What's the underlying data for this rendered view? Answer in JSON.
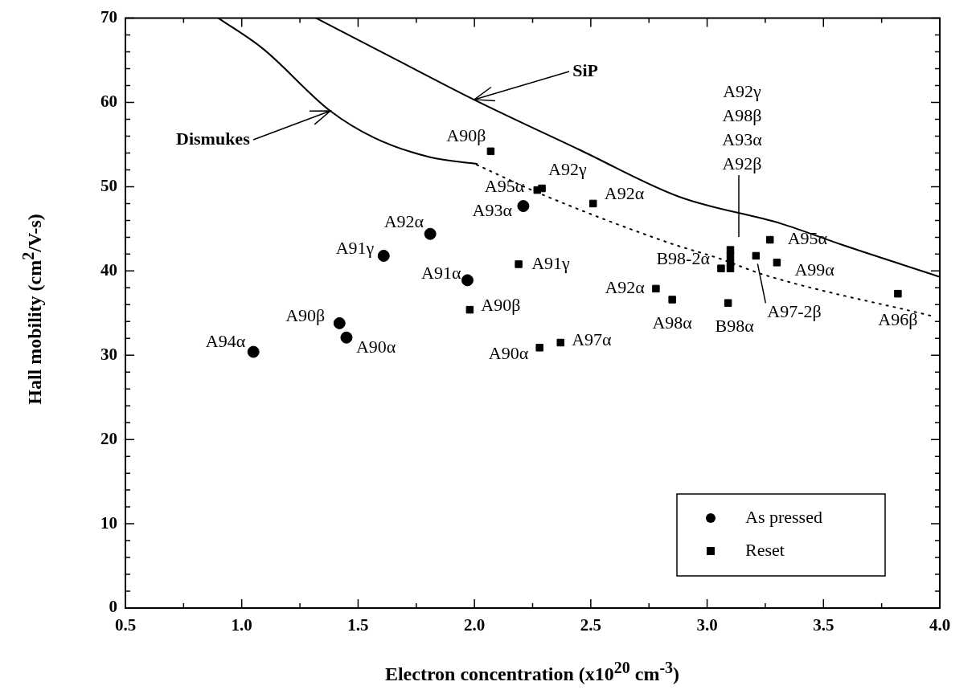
{
  "chart_data": {
    "type": "scatter",
    "xlabel": "Electron concentration (x10$^{20}$ cm$^{-3}$)",
    "ylabel": "Hall mobility (cm$^{2}$/V-s)",
    "xlim": [
      0.5,
      4.0
    ],
    "ylim": [
      0,
      70
    ],
    "xticks": [
      {
        "value": 0.5,
        "label": "0.5"
      },
      {
        "value": 0.75,
        "label": null
      },
      {
        "value": 1,
        "label": "1.0"
      },
      {
        "value": 1.25,
        "label": null
      },
      {
        "value": 1.5,
        "label": "1.5"
      },
      {
        "value": 1.75,
        "label": null
      },
      {
        "value": 2,
        "label": "2.0"
      },
      {
        "value": 2.25,
        "label": null
      },
      {
        "value": 2.5,
        "label": "2.5"
      },
      {
        "value": 2.75,
        "label": null
      },
      {
        "value": 3,
        "label": "3.0"
      },
      {
        "value": 3.25,
        "label": null
      },
      {
        "value": 3.5,
        "label": "3.5"
      },
      {
        "value": 3.75,
        "label": null
      },
      {
        "value": 4,
        "label": "4.0"
      }
    ],
    "yticks": [
      0,
      {
        "value": 2,
        "label": null
      },
      {
        "value": 4,
        "label": null
      },
      {
        "value": 6,
        "label": null
      },
      {
        "value": 8,
        "label": null
      },
      10,
      {
        "value": 12,
        "label": null
      },
      {
        "value": 14,
        "label": null
      },
      {
        "value": 16,
        "label": null
      },
      {
        "value": 18,
        "label": null
      },
      20,
      {
        "value": 22,
        "label": null
      },
      {
        "value": 24,
        "label": null
      },
      {
        "value": 26,
        "label": null
      },
      {
        "value": 28,
        "label": null
      },
      30,
      {
        "value": 32,
        "label": null
      },
      {
        "value": 34,
        "label": null
      },
      {
        "value": 36,
        "label": null
      },
      {
        "value": 38,
        "label": null
      },
      40,
      {
        "value": 42,
        "label": null
      },
      {
        "value": 44,
        "label": null
      },
      {
        "value": 46,
        "label": null
      },
      {
        "value": 48,
        "label": null
      },
      50,
      {
        "value": 52,
        "label": null
      },
      {
        "value": 54,
        "label": null
      },
      {
        "value": 56,
        "label": null
      },
      {
        "value": 58,
        "label": null
      },
      60,
      {
        "value": 62,
        "label": null
      },
      {
        "value": 64,
        "label": null
      },
      {
        "value": 66,
        "label": null
      },
      {
        "value": 68,
        "label": null
      },
      70
    ],
    "grid": false,
    "legend": "bottom right",
    "series": [
      {
        "name": "As pressed",
        "marker": "circle",
        "color": "#000000",
        "x": [
          1.05,
          1.42,
          1.45,
          1.61,
          1.81,
          1.97,
          2.21
        ],
        "values": [
          30.4,
          33.8,
          32.1,
          41.8,
          44.4,
          38.9,
          47.7
        ]
      },
      {
        "name": "Reset",
        "marker": "square",
        "color": "#000000",
        "x": [
          2.07,
          2.27,
          2.29,
          2.51,
          2.19,
          1.98,
          2.28,
          2.37,
          2.78,
          2.85,
          3.09,
          3.06,
          3.1,
          3.1,
          3.1,
          3.1,
          3.21,
          3.27,
          3.3,
          3.82
        ],
        "values": [
          54.2,
          49.6,
          49.8,
          48.0,
          40.8,
          35.4,
          30.9,
          31.5,
          37.9,
          36.6,
          36.2,
          40.3,
          42.5,
          41.8,
          41.0,
          40.3,
          41.8,
          43.7,
          41.0,
          37.3
        ]
      },
      {
        "type": "line",
        "marker": "none",
        "line_style": "solid",
        "color": "#000000",
        "x": [
          0.9,
          1.09,
          1.38,
          1.57,
          1.81,
          2.01
        ],
        "values": [
          70,
          66.4,
          59.0,
          55.8,
          53.5,
          52.7
        ]
      },
      {
        "type": "line",
        "marker": "none",
        "line_style": "dotted",
        "color": "#000000",
        "x": [
          2.01,
          2.28,
          2.84,
          3.05,
          3.25,
          3.96
        ],
        "values": [
          52.6,
          49.2,
          43.3,
          41.5,
          39.5,
          34.7
        ]
      },
      {
        "type": "line",
        "marker": "none",
        "line_style": "solid",
        "color": "#000000",
        "x": [
          1.32,
          1.69,
          2.0,
          2.45,
          2.88,
          3.32,
          3.58,
          4.0
        ],
        "values": [
          70,
          64.7,
          60.3,
          54.4,
          48.8,
          45.6,
          43.1,
          39.3
        ]
      }
    ],
    "annotations": [
      {
        "text": "A94α",
        "x": 1.05,
        "y": 30.4
      },
      {
        "text": "A90β",
        "x": 1.42,
        "y": 33.8
      },
      {
        "text": "A90α",
        "x": 1.45,
        "y": 32.1
      },
      {
        "text": "A91γ",
        "x": 1.61,
        "y": 41.8
      },
      {
        "text": "A92α",
        "x": 1.81,
        "y": 44.4
      },
      {
        "text": "A91α",
        "x": 1.97,
        "y": 38.9
      },
      {
        "text": "A93α",
        "x": 2.21,
        "y": 47.7
      },
      {
        "text": "A90β",
        "x": 2.07,
        "y": 54.2
      },
      {
        "text": "A95α",
        "x": 2.27,
        "y": 49.6
      },
      {
        "text": "A92γ",
        "x": 2.29,
        "y": 49.8
      },
      {
        "text": "A92α",
        "x": 2.51,
        "y": 48.0
      },
      {
        "text": "A91γ",
        "x": 2.19,
        "y": 40.8
      },
      {
        "text": "A90β",
        "x": 1.98,
        "y": 35.4
      },
      {
        "text": "A90α",
        "x": 2.28,
        "y": 30.9
      },
      {
        "text": "A97α",
        "x": 2.37,
        "y": 31.5
      },
      {
        "text": "A92α",
        "x": 2.78,
        "y": 37.9
      },
      {
        "text": "A98α",
        "x": 2.85,
        "y": 36.6
      },
      {
        "text": "B98α",
        "x": 3.09,
        "y": 36.2
      },
      {
        "text": "B98-2α",
        "x": 3.06,
        "y": 40.3
      },
      "A92γ",
      "A98β",
      "A93α",
      "A92β",
      {
        "text": "A97-2β",
        "x": 3.21,
        "y": 41.8
      },
      {
        "text": "A95α",
        "x": 3.27,
        "y": 43.7
      },
      {
        "text": "A99α",
        "x": 3.3,
        "y": 41.0
      },
      {
        "text": "A96β",
        "x": 3.82,
        "y": 37.3
      },
      {
        "text": "Dismukes",
        "x": 1.38,
        "y": 59.0
      },
      {
        "text": "SiP",
        "x": 2.0,
        "y": 60.3
      }
    ]
  }
}
